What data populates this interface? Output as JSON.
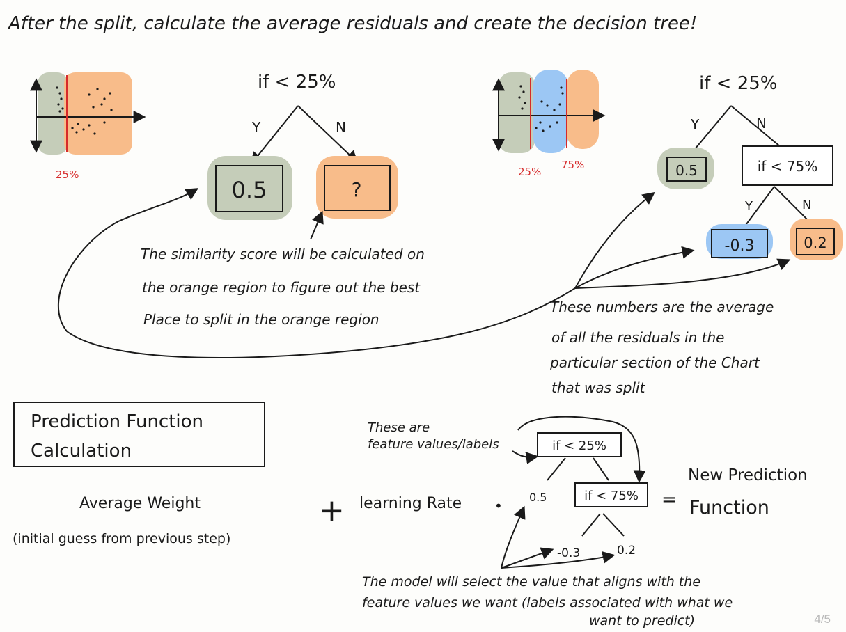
{
  "title": "After the split, calculate the average residuals and create the decision tree!",
  "colors": {
    "green": "#c5cdb9",
    "orange": "#f8bc8a",
    "blue": "#9cc7f4",
    "red": "#d62a2a",
    "ink": "#1a1a1a"
  },
  "left_diagram": {
    "split_label": "25%",
    "tree": {
      "condition": "if < 25%",
      "yes_label": "Y",
      "no_label": "N",
      "yes_value": "0.5",
      "no_value": "?"
    },
    "note": [
      "The similarity score will be calculated on",
      "the orange region to figure out the best",
      "Place to split in the orange region"
    ]
  },
  "right_diagram": {
    "split_label_1": "25%",
    "split_label_2": "75%",
    "tree": {
      "condition": "if < 25%",
      "yes_label": "Y",
      "no_label": "N",
      "yes_value": "0.5",
      "sub_condition": "if < 75%",
      "sub_yes_label": "Y",
      "sub_no_label": "N",
      "sub_yes_value": "-0.3",
      "sub_no_value": "0.2"
    },
    "note": [
      "These numbers are the average",
      "of all the residuals in the",
      "particular section of the Chart",
      "that was split"
    ]
  },
  "prediction": {
    "box_title": [
      "Prediction Function",
      "Calculation"
    ],
    "avg_weight": "Average Weight",
    "avg_weight_note": "(initial guess from previous step)",
    "plus": "+",
    "learning_rate": "learning Rate",
    "dot": "•",
    "feature_note": [
      "These are",
      "feature values/labels"
    ],
    "tree": {
      "condition": "if < 25%",
      "left_value": "0.5",
      "sub_condition": "if < 75%",
      "sub_left_value": "-0.3",
      "sub_right_value": "0.2"
    },
    "equals": "=",
    "result": [
      "New Prediction",
      "Function"
    ],
    "select_note": [
      "The model will select the value that aligns with the",
      "feature values we want (labels associated with what we",
      "want to predict)"
    ]
  },
  "page_indicator": "4/5"
}
